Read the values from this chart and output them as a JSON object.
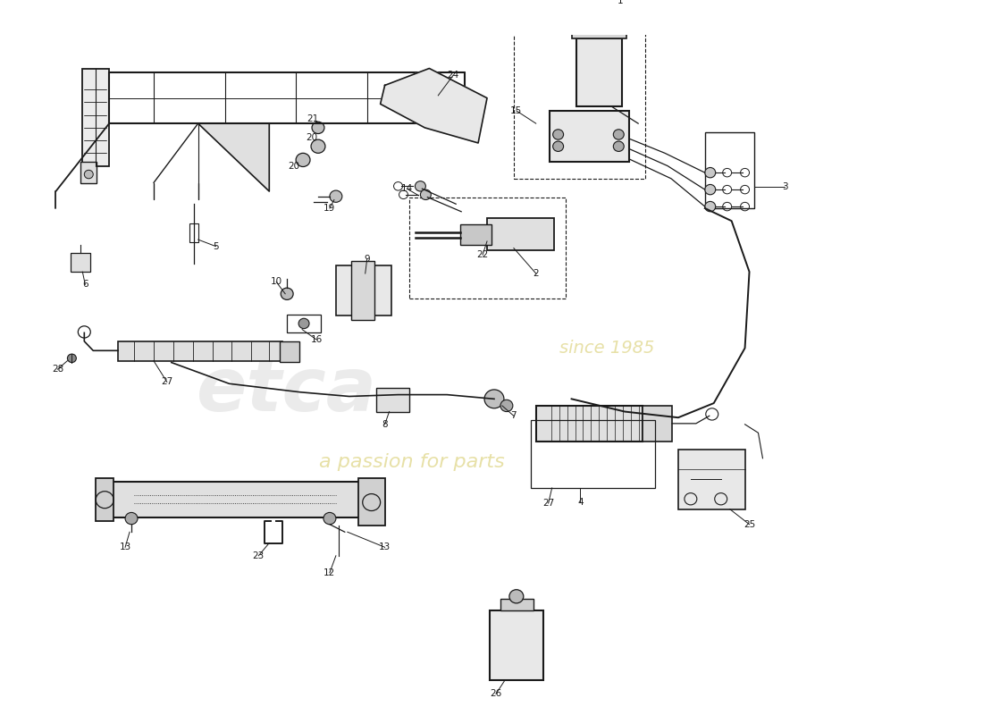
{
  "background_color": "#ffffff",
  "line_color": "#1a1a1a",
  "watermark_text1": "etca",
  "watermark_text2": "a passion for parts",
  "watermark_year": "since 1985"
}
